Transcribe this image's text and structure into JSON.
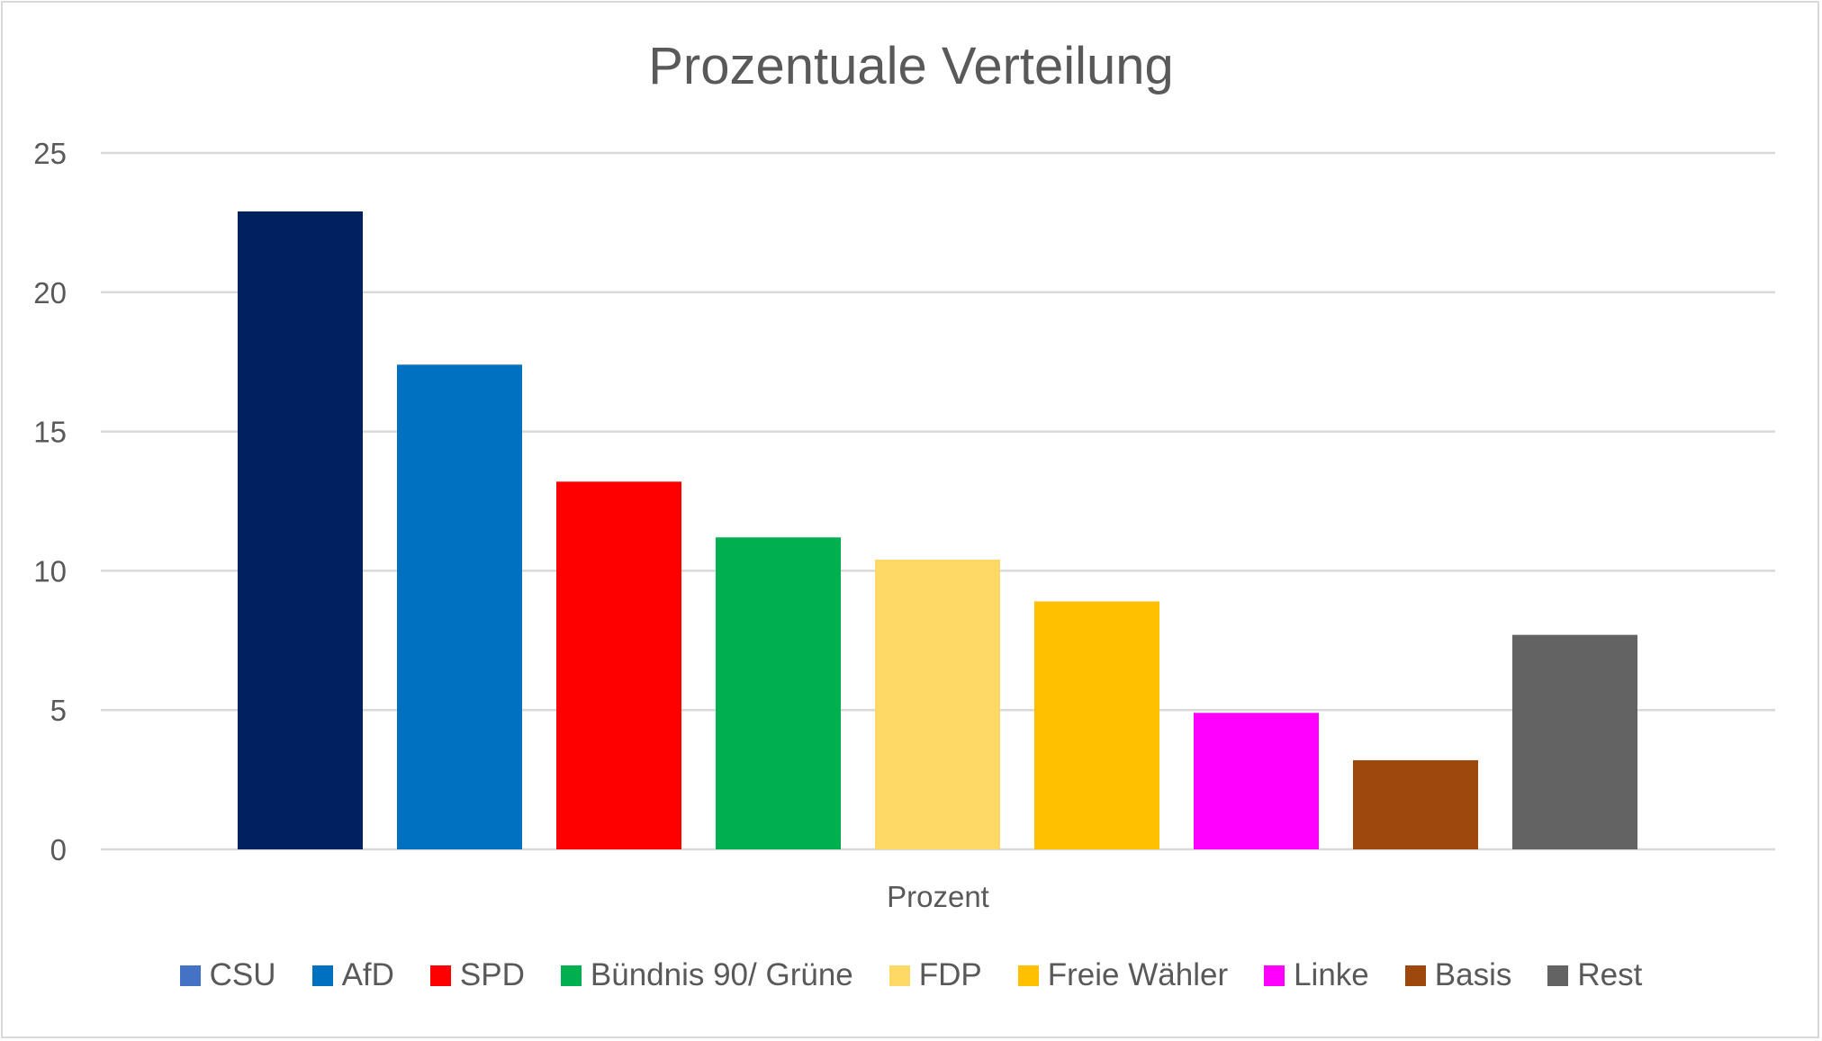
{
  "chart_data": {
    "type": "bar",
    "title": "Prozentuale Verteilung",
    "xlabel": "Prozent",
    "ylabel": "",
    "ylim": [
      0,
      25
    ],
    "yticks": [
      0,
      5,
      10,
      15,
      20,
      25
    ],
    "grid": true,
    "legend_position": "bottom",
    "category_label": "Prozent",
    "series": [
      {
        "name": "CSU",
        "value": 22.9,
        "color": "#002060",
        "legend_color": "#4472c4"
      },
      {
        "name": "AfD",
        "value": 17.4,
        "color": "#0070c0",
        "legend_color": "#0070c0"
      },
      {
        "name": "SPD",
        "value": 13.2,
        "color": "#ff0000",
        "legend_color": "#ff0000"
      },
      {
        "name": "Bündnis 90/ Grüne",
        "value": 11.2,
        "color": "#00b050",
        "legend_color": "#00b050"
      },
      {
        "name": "FDP",
        "value": 10.4,
        "color": "#ffd966",
        "legend_color": "#ffd966"
      },
      {
        "name": "Freie Wähler",
        "value": 8.9,
        "color": "#ffc000",
        "legend_color": "#ffc000"
      },
      {
        "name": "Linke",
        "value": 4.9,
        "color": "#ff00ff",
        "legend_color": "#ff00ff"
      },
      {
        "name": "Basis",
        "value": 3.2,
        "color": "#9e480e",
        "legend_color": "#9e480e"
      },
      {
        "name": "Rest",
        "value": 7.7,
        "color": "#636363",
        "legend_color": "#636363"
      }
    ]
  }
}
